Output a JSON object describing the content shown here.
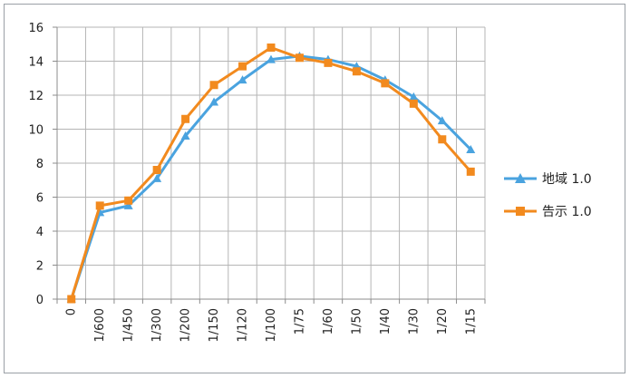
{
  "chart_data": {
    "type": "line",
    "x": [
      "0",
      "1/600",
      "1/450",
      "1/300",
      "1/200",
      "1/150",
      "1/120",
      "1/100",
      "1/75",
      "1/60",
      "1/50",
      "1/40",
      "1/30",
      "1/20",
      "1/15"
    ],
    "ylim": [
      0,
      16
    ],
    "yticks": [
      0,
      2,
      4,
      6,
      8,
      10,
      12,
      14,
      16
    ],
    "grid": true,
    "legend_position": "right",
    "series": [
      {
        "name": "地域 1.0",
        "color": "#4aa3df",
        "marker": "triangle",
        "values": [
          0,
          5.1,
          5.5,
          7.1,
          9.6,
          11.6,
          12.9,
          14.1,
          14.3,
          14.1,
          13.7,
          12.9,
          11.9,
          10.5,
          8.8
        ]
      },
      {
        "name": "告示 1.0",
        "color": "#f28a1e",
        "marker": "square",
        "values": [
          0,
          5.5,
          5.8,
          7.6,
          10.6,
          12.6,
          13.7,
          14.8,
          14.2,
          13.9,
          13.4,
          12.7,
          11.5,
          9.4,
          7.5
        ]
      }
    ]
  }
}
